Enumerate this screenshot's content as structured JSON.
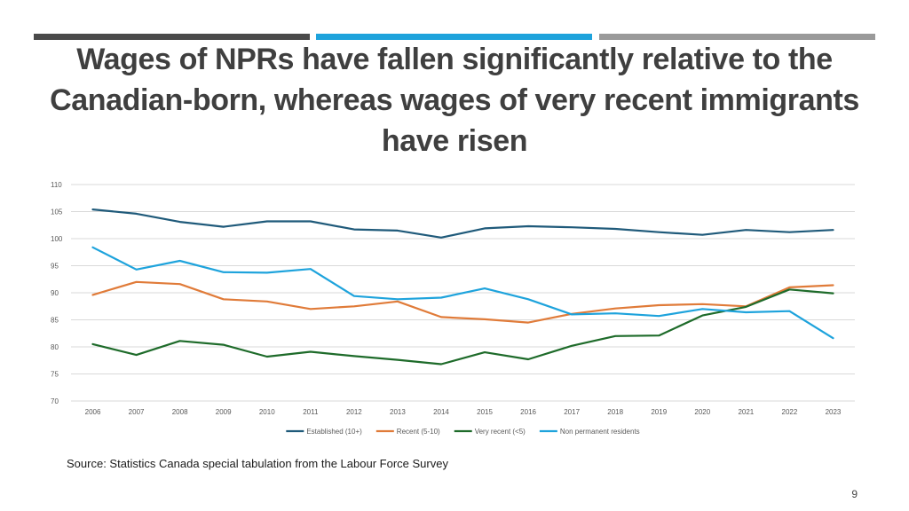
{
  "slide": {
    "title": "Wages of NPRs have fallen significantly relative to the Canadian-born, whereas wages of very recent immigrants have risen",
    "source": "Source: Statistics Canada special tabulation from the Labour Force Survey",
    "page_number": "9",
    "accent_bars": [
      "#4a4a4a",
      "#1ea3dc",
      "#9a9a9a"
    ]
  },
  "chart_data": {
    "type": "line",
    "title": "",
    "xlabel": "",
    "ylabel": "",
    "ylim": [
      70,
      110
    ],
    "yticks": [
      70,
      75,
      80,
      85,
      90,
      95,
      100,
      105,
      110
    ],
    "grid": true,
    "legend_position": "bottom",
    "x": [
      "2006",
      "2007",
      "2008",
      "2009",
      "2010",
      "2011",
      "2012",
      "2013",
      "2014",
      "2015",
      "2016",
      "2017",
      "2018",
      "2019",
      "2020",
      "2021",
      "2022",
      "2023"
    ],
    "series": [
      {
        "name": "Established (10+)",
        "color": "#1f5a7a",
        "values": [
          105.4,
          104.6,
          103.1,
          102.2,
          103.2,
          103.2,
          101.7,
          101.5,
          100.2,
          101.9,
          102.3,
          102.1,
          101.8,
          101.2,
          100.7,
          101.6,
          101.2,
          101.6
        ]
      },
      {
        "name": "Recent (5-10)",
        "color": "#e07b39",
        "values": [
          89.6,
          92.0,
          91.6,
          88.8,
          88.4,
          87.0,
          87.5,
          88.4,
          85.5,
          85.1,
          84.5,
          86.1,
          87.1,
          87.7,
          87.9,
          87.5,
          91.0,
          91.4
        ]
      },
      {
        "name": "Very recent (<5)",
        "color": "#1e6b2a",
        "values": [
          80.5,
          78.5,
          81.1,
          80.4,
          78.2,
          79.1,
          78.3,
          77.6,
          76.8,
          79.0,
          77.7,
          80.2,
          82.0,
          82.1,
          85.8,
          87.4,
          90.6,
          89.9
        ]
      },
      {
        "name": "Non permanent residents",
        "color": "#1ea3dc",
        "values": [
          98.4,
          94.3,
          95.9,
          93.8,
          93.7,
          94.4,
          89.4,
          88.8,
          89.1,
          90.8,
          88.8,
          86.0,
          86.2,
          85.7,
          87.0,
          86.4,
          86.6,
          81.6
        ]
      }
    ]
  }
}
